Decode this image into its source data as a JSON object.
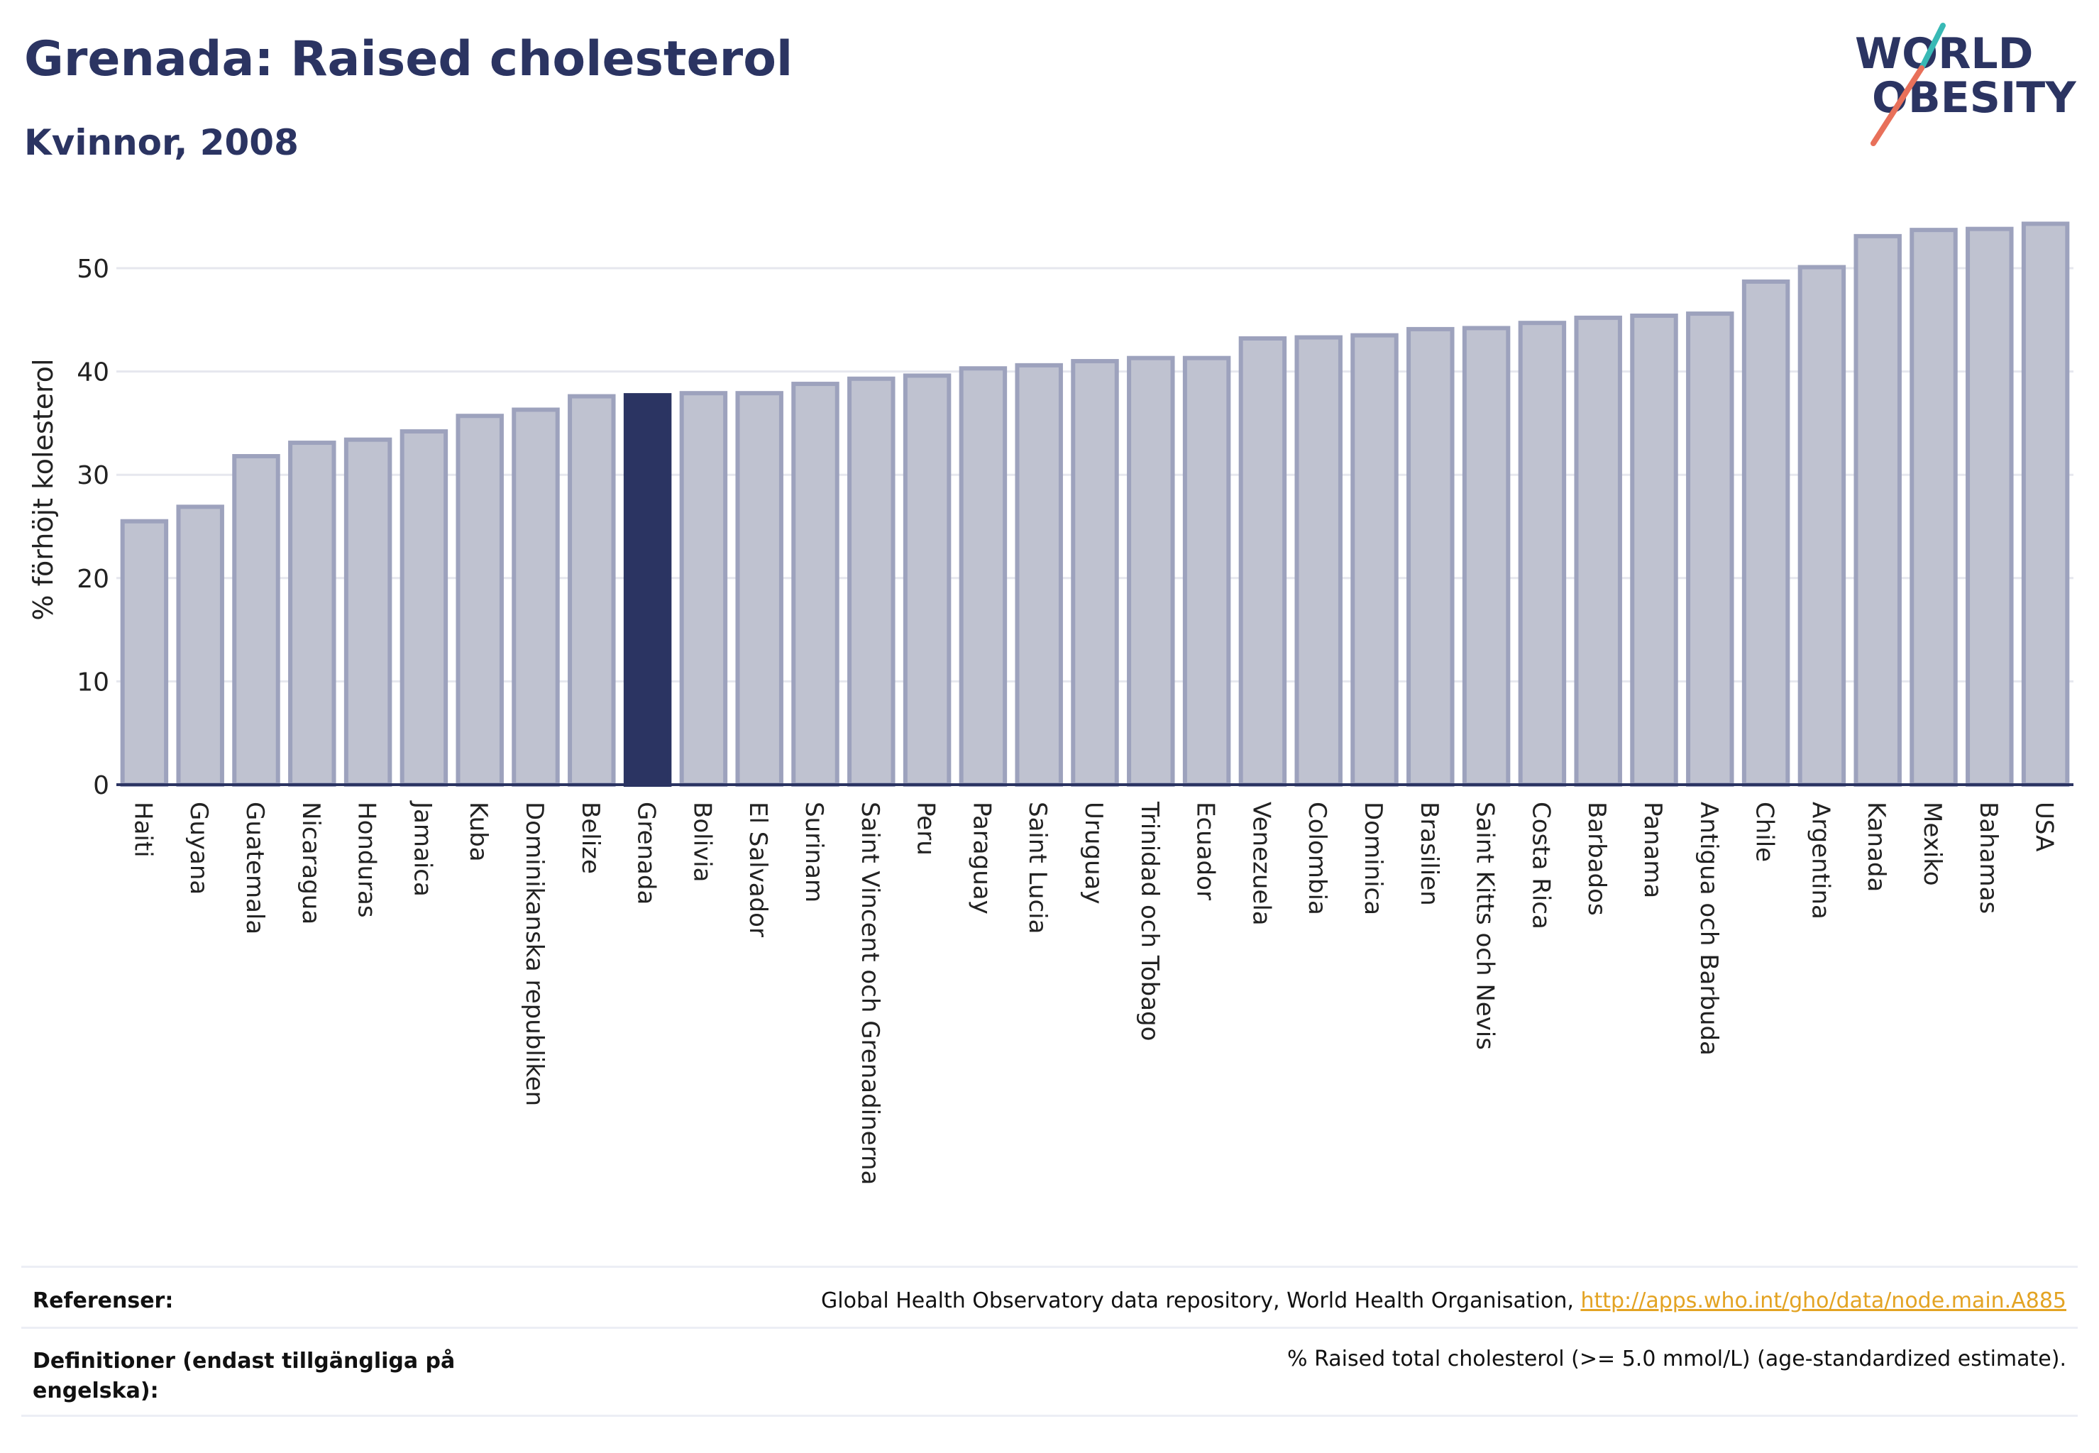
{
  "header": {
    "title": "Grenada: Raised cholesterol",
    "subtitle": "Kvinnor, 2008"
  },
  "logo": {
    "line1": "WORLD",
    "line2": "OBESITY"
  },
  "chart_data": {
    "type": "bar",
    "ylabel": "% förhöjt kolesterol",
    "xlabel": "",
    "ylim": [
      0,
      55
    ],
    "yticks": [
      0,
      10,
      20,
      30,
      40,
      50
    ],
    "grid": true,
    "highlight": "Grenada",
    "categories": [
      "Haiti",
      "Guyana",
      "Guatemala",
      "Nicaragua",
      "Honduras",
      "Jamaica",
      "Kuba",
      "Dominikanska republiken",
      "Belize",
      "Grenada",
      "Bolivia",
      "El Salvador",
      "Surinam",
      "Saint Vincent och Grenadinerna",
      "Peru",
      "Paraguay",
      "Saint Lucia",
      "Uruguay",
      "Trinidad och Tobago",
      "Ecuador",
      "Venezuela",
      "Colombia",
      "Dominica",
      "Brasilien",
      "Saint Kitts och Nevis",
      "Costa Rica",
      "Barbados",
      "Panama",
      "Antigua och Barbuda",
      "Chile",
      "Argentina",
      "Kanada",
      "Mexiko",
      "Bahamas",
      "USA"
    ],
    "values": [
      25.5,
      26.9,
      31.8,
      33.1,
      33.4,
      34.2,
      35.7,
      36.3,
      37.6,
      37.7,
      37.9,
      37.9,
      38.8,
      39.3,
      39.6,
      40.3,
      40.6,
      41.0,
      41.3,
      41.3,
      43.2,
      43.3,
      43.5,
      44.1,
      44.2,
      44.7,
      45.2,
      45.4,
      45.6,
      48.7,
      50.1,
      53.1,
      53.7,
      53.8,
      54.3
    ],
    "colors": {
      "bar": "#bfc2d0",
      "bar_edge": "#9da2bd",
      "highlight": "#2b3462",
      "axis": "#2b3462",
      "grid": "#e6e7ee"
    }
  },
  "footer": {
    "references_label": "Referenser:",
    "references_text": "Global Health Observatory data repository, World Health Organisation, ",
    "references_link": "http://apps.who.int/gho/data/node.main.A885",
    "definitions_label": "Definitioner (endast tillgängliga på engelska):",
    "definitions_text": "% Raised total cholesterol (>= 5.0 mmol/L) (age-standardized estimate)."
  }
}
